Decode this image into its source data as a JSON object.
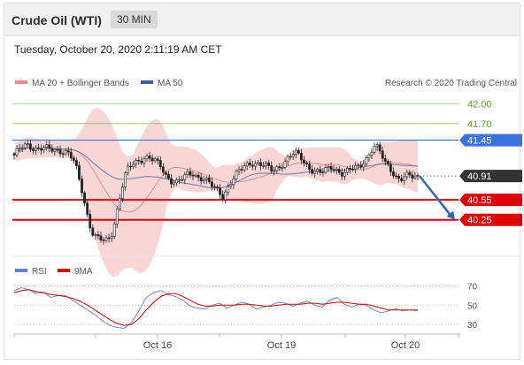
{
  "header": {
    "title": "Crude Oil (WTI)",
    "timeframe": "30 MIN"
  },
  "datetime": "Tuesday, October 20, 2020 2:11:19 AM CET",
  "legend": {
    "ma20_bb": "MA 20 + Bollinger Bands",
    "ma50": "MA 50",
    "credit": "Research © 2020 Trading Central"
  },
  "rsi_legend": {
    "rsi": "RSI",
    "ma9": "9MA"
  },
  "colors": {
    "resistance": "#3b72e0",
    "support": "#e00000",
    "target": "#8cc15a",
    "bands": "#f7c4c4",
    "ma20": "#e05555",
    "ma50": "#3a5ea0",
    "rsi": "#5b7fe0",
    "current": "#333333",
    "arrow": "#2e6ab0"
  },
  "chart_data": [
    {
      "type": "candlestick",
      "title": "Crude Oil (WTI)",
      "timeframe": "30 MIN",
      "ylim": [
        39.7,
        42.15
      ],
      "x_ticks": [
        "Oct 16",
        "Oct 19",
        "Oct 20"
      ],
      "levels": [
        {
          "label": "42.00",
          "value": 42.0,
          "kind": "target"
        },
        {
          "label": "41.70",
          "value": 41.7,
          "kind": "target"
        },
        {
          "label": "41.45",
          "value": 41.45,
          "kind": "resistance"
        },
        {
          "label": "40.91",
          "value": 40.91,
          "kind": "current"
        },
        {
          "label": "40.55",
          "value": 40.55,
          "kind": "support"
        },
        {
          "label": "40.25",
          "value": 40.25,
          "kind": "support"
        }
      ],
      "series": [
        {
          "name": "MA 20 + Bollinger Bands"
        },
        {
          "name": "MA 50"
        }
      ],
      "close_path": [
        [
          0,
          41.2
        ],
        [
          8,
          41.35
        ],
        [
          14,
          41.4
        ],
        [
          20,
          41.35
        ],
        [
          26,
          41.3
        ],
        [
          34,
          41.32
        ],
        [
          44,
          41.32
        ],
        [
          50,
          41.3
        ],
        [
          56,
          41.28
        ],
        [
          62,
          41.22
        ],
        [
          68,
          41.1
        ],
        [
          72,
          40.9
        ],
        [
          76,
          40.7
        ],
        [
          80,
          40.45
        ],
        [
          84,
          40.2
        ],
        [
          88,
          40.05
        ],
        [
          92,
          39.97
        ],
        [
          96,
          39.95
        ],
        [
          100,
          39.93
        ],
        [
          104,
          39.94
        ],
        [
          108,
          40.0
        ],
        [
          112,
          40.2
        ],
        [
          116,
          40.45
        ],
        [
          120,
          40.7
        ],
        [
          124,
          40.9
        ],
        [
          128,
          41.02
        ],
        [
          134,
          41.1
        ],
        [
          140,
          41.15
        ],
        [
          146,
          41.2
        ],
        [
          152,
          41.18
        ],
        [
          158,
          41.12
        ],
        [
          164,
          41.05
        ],
        [
          170,
          40.92
        ],
        [
          176,
          40.85
        ],
        [
          182,
          40.82
        ],
        [
          188,
          40.86
        ],
        [
          194,
          40.92
        ],
        [
          200,
          40.95
        ],
        [
          206,
          40.9
        ],
        [
          212,
          40.88
        ],
        [
          218,
          40.8
        ],
        [
          224,
          40.72
        ],
        [
          230,
          40.66
        ],
        [
          234,
          40.6
        ],
        [
          238,
          40.72
        ],
        [
          244,
          40.85
        ],
        [
          250,
          40.95
        ],
        [
          258,
          41.05
        ],
        [
          266,
          41.12
        ],
        [
          274,
          41.1
        ],
        [
          282,
          41.05
        ],
        [
          290,
          40.98
        ],
        [
          296,
          41.05
        ],
        [
          302,
          41.12
        ],
        [
          308,
          41.2
        ],
        [
          314,
          41.25
        ],
        [
          320,
          41.2
        ],
        [
          326,
          41.1
        ],
        [
          332,
          41.02
        ],
        [
          338,
          40.98
        ],
        [
          344,
          40.95
        ],
        [
          350,
          41.0
        ],
        [
          356,
          41.05
        ],
        [
          362,
          41.0
        ],
        [
          368,
          40.95
        ],
        [
          374,
          40.98
        ],
        [
          380,
          41.02
        ],
        [
          386,
          41.05
        ],
        [
          392,
          41.15
        ],
        [
          396,
          41.2
        ],
        [
          400,
          41.3
        ],
        [
          404,
          41.35
        ],
        [
          408,
          41.3
        ],
        [
          412,
          41.2
        ],
        [
          416,
          41.1
        ],
        [
          420,
          41.05
        ],
        [
          424,
          40.98
        ],
        [
          428,
          40.9
        ],
        [
          432,
          40.85
        ],
        [
          436,
          40.88
        ],
        [
          440,
          40.9
        ],
        [
          446,
          40.9
        ],
        [
          452,
          40.91
        ]
      ],
      "forecast": {
        "from": 40.91,
        "to": 40.25
      }
    },
    {
      "type": "line",
      "title": "RSI",
      "ylim": [
        20,
        75
      ],
      "y_ticks": [
        30,
        50,
        70
      ],
      "series": [
        {
          "name": "RSI",
          "values": [
            65,
            68,
            66,
            62,
            63,
            58,
            60,
            60,
            55,
            50,
            45,
            40,
            34,
            29,
            27,
            26,
            32,
            44,
            58,
            63,
            65,
            61,
            59,
            55,
            49,
            47,
            46,
            50,
            52,
            47,
            50,
            53,
            51,
            46,
            48,
            50,
            53,
            52,
            49,
            52,
            54,
            50,
            48,
            55,
            58,
            51,
            48,
            51,
            50,
            45,
            42,
            44,
            46,
            44,
            45,
            44
          ]
        },
        {
          "name": "9MA",
          "values": [
            63,
            65,
            66,
            64,
            63,
            61,
            60,
            59,
            57,
            54,
            50,
            45,
            40,
            35,
            31,
            29,
            30,
            36,
            45,
            53,
            59,
            62,
            62,
            59,
            55,
            51,
            49,
            49,
            50,
            50,
            50,
            51,
            51,
            50,
            49,
            49,
            50,
            51,
            51,
            51,
            52,
            52,
            51,
            52,
            53,
            53,
            52,
            51,
            51,
            49,
            47,
            45,
            45,
            45,
            45,
            45
          ]
        }
      ]
    }
  ]
}
